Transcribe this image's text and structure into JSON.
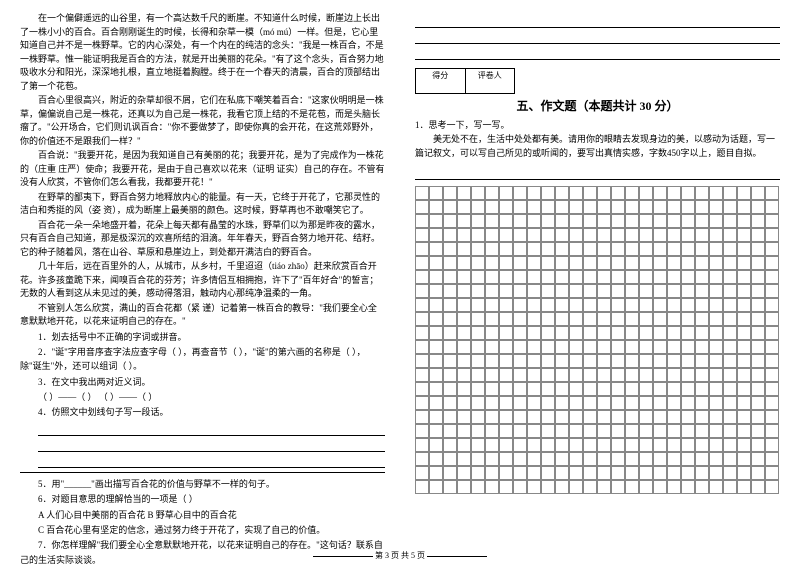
{
  "passage": {
    "p1": "在一个偏僻遥远的山谷里，有一个高达数千尺的断崖。不知道什么时候，断崖边上长出了一株小小的百合。百合刚刚诞生的时候，长得和杂草一模（mó  mú）一样。但是，它心里知道自己并不是一株野草。它的内心深处，有一个内在的纯洁的念头：\"我是一株百合，不是一株野草。惟一能证明我是百合的方法，就是开出美丽的花朵。\"有了这个念头，百合努力地吸收水分和阳光，深深地扎根，直立地挺着胸膛。终于在一个春天的清晨，百合的顶部结出了第一个花苞。",
    "p2": "百合心里很高兴，附近的杂草却很不屑，它们在私底下嘲笑着百合：\"这家伙明明是一株草，偏偏说自己是一株花，还真以为自己是一株花，我看它顶上结的不是花苞，而是头脑长瘤了。\"公开场合，它们则讥讽百合：\"你不要做梦了，即使你真的会开花，在这荒郊野外，你的价值还不是跟我们一样？\"",
    "p3": "百合说：\"我要开花，是因为我知道自己有美丽的花；我要开花，是为了完成作为一株花的（庄重  庄严）使命；我要开花，是由于自己喜欢以花来（证明  证实）自己的存在。不管有没有人欣赏，不管你们怎么看我，我都要开花！\"",
    "p4": "在野草的鄙夷下，野百合努力地释放内心的能量。有一天，它终于开花了，它那灵性的洁白和秀挺的风（姿  资），成为断崖上最美丽的颜色。这时候，野草再也不敢嘲笑它了。",
    "p5": "百合花一朵一朵地盛开着，花朵上每天都有晶莹的水珠，野草们以为那是昨夜的露水，只有百合自己知道，那是极深沉的欢喜所结的泪滴。年年春天，野百合努力地开花、结籽。它的种子随着风，落在山谷、草原和悬崖边上，到处都开满洁白的野百合。",
    "p6": "几十年后，远在百里外的人，从城市，从乡村，千里迢迢（tiáo  zhāo）赶来欣赏百合开花。许多孩童跪下来，闻嗅百合花的芬芳；许多情侣互相拥抱，许下了\"百年好合\"的誓言；无数的人看到这从未见过的美，感动得落泪，触动内心那纯净温柔的一角。",
    "p7": "不管别人怎么欣赏，满山的百合花都（紧  谨）记着第一株百合的教导：\"我们要全心全意默默地开花，以花来证明自己的存在。\""
  },
  "questions": {
    "q1": "1．划去括号中不正确的字词或拼音。",
    "q2": "2．\"诞\"字用音序查字法应查字母（     ），再查音节（     ），\"诞\"的第六画的名称是（     ），除\"诞生\"外，还可以组词（     ）。",
    "q3": "3．在文中我出两对近义词。",
    "q3b": "（     ）——（     ）    （     ）——（     ）",
    "q4": "4．仿照文中划线句子写一段话。",
    "q5": "5．用\"______\"画出描写百合花的价值与野草不一样的句子。",
    "q6": "6．对题目意思的理解恰当的一项是（     ）",
    "q6a": "A 人们心目中美丽的百合花        B 野草心目中的百合花",
    "q6b": "C 百合花心里有坚定的信念，通过努力终于开花了，实现了自己的价值。",
    "q7": "7．你怎样理解\"我们要全心全意默默地开花，以花来证明自己的存在。\"这句话？联系自己的生活实际谈谈。"
  },
  "right": {
    "score1": "得分",
    "score2": "评卷人",
    "sectionTitle": "五、作文题（本题共计 30 分）",
    "prompt1": "1．思考一下，写一写。",
    "prompt2": "美无处不在，生活中处处都有美。请用你的眼睛去发现身边的美，以感动为话题，写一篇记叙文，可以写自己所见的或听闻的，要写出真情实感，字数450字以上，题目自拟。"
  },
  "footer": {
    "text": "第 3 页  共 5 页"
  },
  "grid": {
    "rows": 22,
    "cols": 26
  }
}
